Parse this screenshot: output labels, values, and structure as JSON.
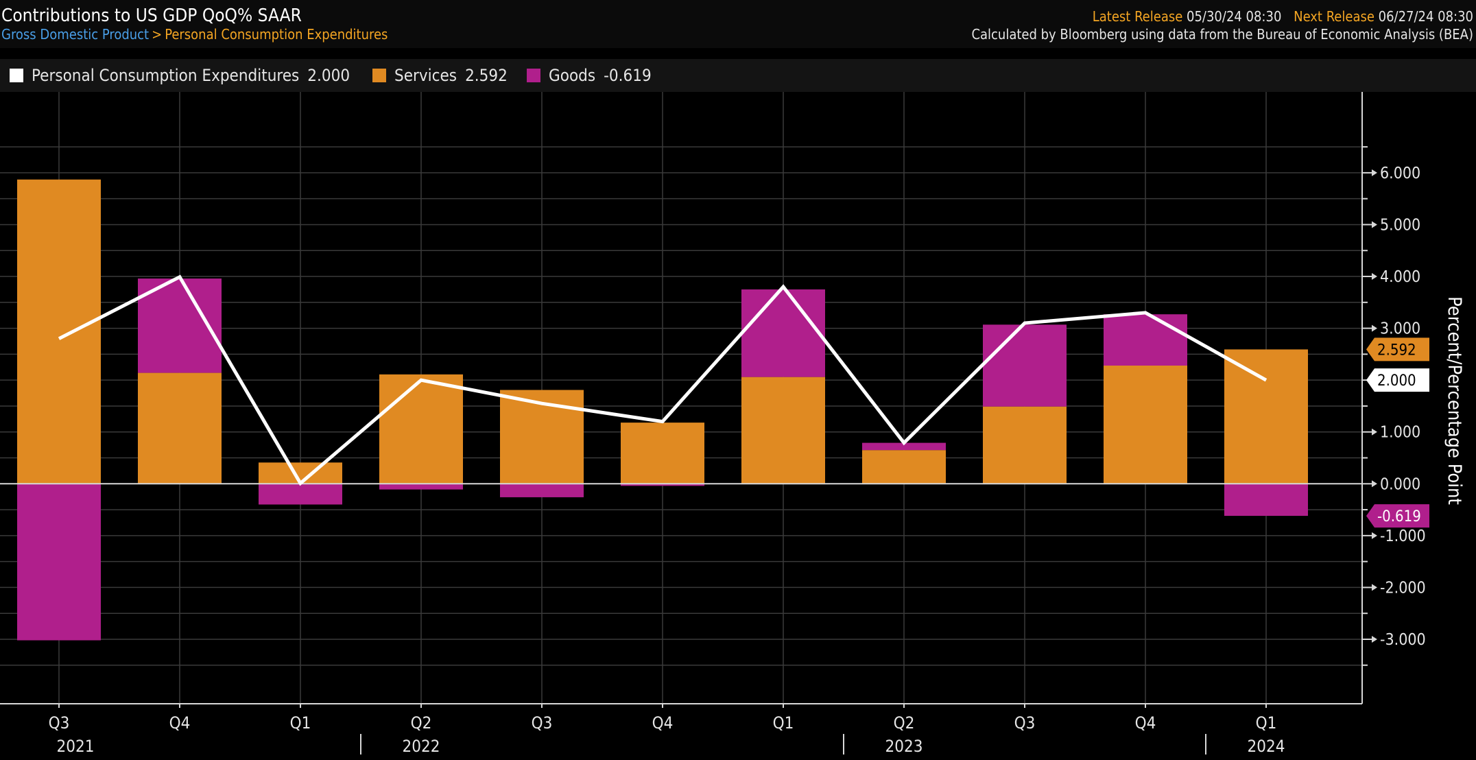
{
  "header": {
    "title": "Contributions to US GDP QoQ% SAAR",
    "breadcrumb": [
      "Gross Domestic Product",
      "Personal Consumption Expenditures"
    ],
    "breadcrumb_separator": ">",
    "latest_release_label": "Latest Release",
    "latest_release_value": "05/30/24 08:30",
    "next_release_label": "Next Release",
    "next_release_value": "06/27/24 08:30",
    "source": "Calculated by Bloomberg using data from the Bureau of Economic Analysis (BEA)"
  },
  "legend": [
    {
      "name": "Personal Consumption Expenditures",
      "value": "2.000",
      "color": "#ffffff"
    },
    {
      "name": "Services",
      "value": "2.592",
      "color": "#e08a22"
    },
    {
      "name": "Goods",
      "value": "-0.619",
      "color": "#b01f8c"
    }
  ],
  "chart_data": {
    "type": "bar",
    "stacked": true,
    "quarters": [
      "Q3",
      "Q4",
      "Q1",
      "Q2",
      "Q3",
      "Q4",
      "Q1",
      "Q2",
      "Q3",
      "Q4",
      "Q1"
    ],
    "years": [
      {
        "label": "2021",
        "quarter_index": 0
      },
      {
        "label": "2022",
        "quarter_index": 3
      },
      {
        "label": "2023",
        "quarter_index": 7
      },
      {
        "label": "2024",
        "quarter_index": 10
      }
    ],
    "series": [
      {
        "name": "Services",
        "type": "bar",
        "color": "#e08a22",
        "values": [
          5.87,
          2.14,
          0.41,
          2.11,
          1.81,
          1.18,
          2.06,
          0.65,
          1.49,
          2.28,
          2.592
        ]
      },
      {
        "name": "Goods",
        "type": "bar",
        "color": "#b01f8c",
        "values": [
          -3.02,
          1.82,
          -0.4,
          -0.11,
          -0.26,
          -0.04,
          1.69,
          0.14,
          1.58,
          0.99,
          -0.619
        ]
      },
      {
        "name": "Personal Consumption Expenditures",
        "type": "line",
        "color": "#ffffff",
        "values": [
          2.8,
          3.99,
          0.01,
          2.0,
          1.55,
          1.2,
          3.8,
          0.79,
          3.1,
          3.3,
          2.0
        ]
      }
    ],
    "ylabel": "Percent/Percentage Point",
    "ylim": [
      -3.9,
      6.7
    ],
    "yticks": [
      {
        "v": 6,
        "label": "6.000"
      },
      {
        "v": 5,
        "label": "5.000"
      },
      {
        "v": 4,
        "label": "4.000"
      },
      {
        "v": 3,
        "label": "3.000"
      },
      {
        "v": 2,
        "label": "2.000"
      },
      {
        "v": 1,
        "label": "1.000"
      },
      {
        "v": 0,
        "label": "0.000"
      },
      {
        "v": -1,
        "label": "-1.000"
      },
      {
        "v": -2,
        "label": "-2.000"
      },
      {
        "v": -3,
        "label": "-3.000"
      }
    ],
    "end_labels": [
      {
        "series": "Services",
        "value": 2.592,
        "label": "2.592",
        "bg": "#e08a22",
        "fg": "#000000"
      },
      {
        "series": "Personal Consumption Expenditures",
        "value": 2.0,
        "label": "2.000",
        "bg": "#ffffff",
        "fg": "#000000"
      },
      {
        "series": "Goods",
        "value": -0.619,
        "label": "-0.619",
        "bg": "#b01f8c",
        "fg": "#ffffff"
      }
    ],
    "grid": true,
    "legend_position": "top-left"
  }
}
